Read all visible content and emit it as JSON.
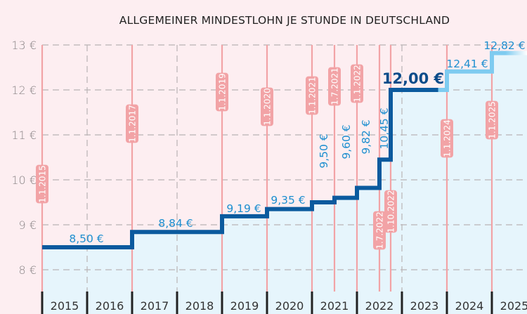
{
  "chart_data": {
    "type": "line",
    "step": true,
    "title": "ALLGEMEINER MINDESTLOHN JE STUNDE IN DEUTSCHLAND",
    "xlabel": "",
    "ylabel": "",
    "ylim": [
      7.5,
      13
    ],
    "xlim": [
      2015,
      2025.8
    ],
    "yticks": [
      8,
      9,
      10,
      11,
      12,
      13
    ],
    "ytick_labels": [
      "8 €",
      "9 €",
      "10 €",
      "11 €",
      "12 €",
      "13 €"
    ],
    "categories": [
      "2015",
      "2016",
      "2017",
      "2018",
      "2019",
      "2020",
      "2021",
      "2022",
      "2023",
      "2024",
      "2025"
    ],
    "grid": true,
    "legend": "none",
    "points": [
      {
        "date": "1.1.2015",
        "x": 2015.0,
        "value": 8.5,
        "label": "8,50 €"
      },
      {
        "date": "1.1.2017",
        "x": 2017.0,
        "value": 8.84,
        "label": "8,84 €"
      },
      {
        "date": "1.1.2019",
        "x": 2019.0,
        "value": 9.19,
        "label": "9,19 €"
      },
      {
        "date": "1.1.2020",
        "x": 2020.0,
        "value": 9.35,
        "label": "9,35 €"
      },
      {
        "date": "1.1.2021",
        "x": 2021.0,
        "value": 9.5,
        "label": "9,50 €"
      },
      {
        "date": "1.7.2021",
        "x": 2021.5,
        "value": 9.6,
        "label": "9,60 €"
      },
      {
        "date": "1.1.2022",
        "x": 2022.0,
        "value": 9.82,
        "label": "9,82 €"
      },
      {
        "date": "1.7.2022",
        "x": 2022.5,
        "value": 10.45,
        "label": "10,45 €"
      },
      {
        "date": "1.10.2022",
        "x": 2022.75,
        "value": 12.0,
        "label": "12,00 €"
      },
      {
        "date": "1.1.2024",
        "x": 2024.0,
        "value": 12.41,
        "label": "12,41 €"
      },
      {
        "date": "1.1.2025",
        "x": 2025.0,
        "value": 12.82,
        "label": "12,82 €"
      }
    ],
    "colors": {
      "background": "#fdeef1",
      "area": "#e6f5fc",
      "line_current": "#0b5a9e",
      "line_future": "#7ecbf0",
      "value_label": "#1e8fd0",
      "highlight_label": "#0b4c8a",
      "date_marker": "#f2a3a6",
      "grid": "#b9b3b5",
      "axis_text": "#8a8486"
    }
  }
}
